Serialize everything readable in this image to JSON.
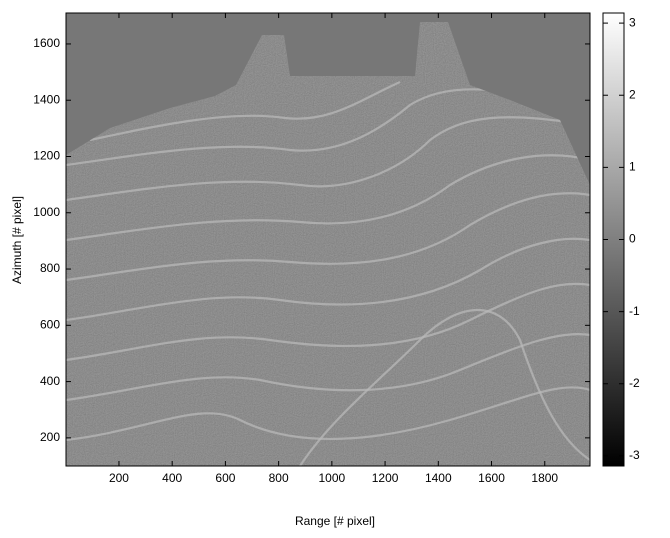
{
  "chart_data": {
    "type": "heatmap",
    "xlabel": "Range [# pixel]",
    "ylabel": "Azimuth [# pixel]",
    "xlim": [
      1,
      1970
    ],
    "xticks": [
      200,
      400,
      600,
      800,
      1000,
      1200,
      1400,
      1600,
      1800
    ],
    "ylim": [
      100,
      1710
    ],
    "yticks": [
      200,
      400,
      600,
      800,
      1000,
      1200,
      1400,
      1600
    ],
    "colorbar": {
      "lim": [
        -3.14,
        3.14
      ],
      "ticks": [
        -3,
        -2,
        -1,
        0,
        1,
        2,
        3
      ]
    }
  }
}
